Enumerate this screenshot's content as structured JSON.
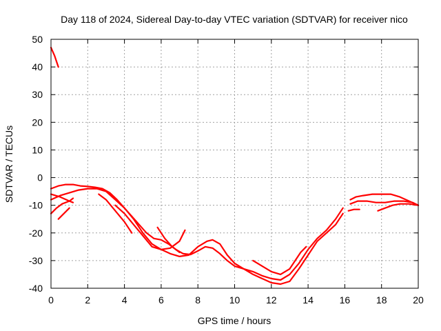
{
  "chart_data": {
    "type": "line",
    "title": "Day 118 of 2024, Sidereal Day-to-day VTEC variation (SDTVAR) for receiver nico",
    "xlabel": "GPS time / hours",
    "ylabel": "SDTVAR / TECUs",
    "xlim": [
      0,
      20
    ],
    "ylim": [
      -40,
      50
    ],
    "xticks": [
      0,
      2,
      4,
      6,
      8,
      10,
      12,
      14,
      16,
      18,
      20
    ],
    "yticks": [
      -40,
      -30,
      -20,
      -10,
      0,
      10,
      20,
      30,
      40,
      50
    ],
    "grid": true,
    "color": "#ff0000",
    "series": [
      {
        "name": "s1",
        "x": [
          0.0,
          0.2,
          0.4
        ],
        "y": [
          47,
          44,
          40
        ]
      },
      {
        "name": "s2",
        "x": [
          0.0,
          0.4,
          0.8,
          1.2,
          1.6,
          2.0,
          2.4,
          2.8,
          3.2,
          3.6,
          4.0,
          4.4,
          4.8,
          5.2,
          5.6,
          6.0,
          6.4,
          6.8,
          7.2,
          7.6,
          8.0,
          8.4,
          8.8,
          9.2,
          9.6,
          10.0,
          10.5,
          11.0,
          11.5,
          12.0,
          12.5,
          13.0,
          13.5,
          14.0,
          14.5,
          15.0,
          15.5,
          15.9
        ],
        "y": [
          -4,
          -3,
          -2.5,
          -2.5,
          -3,
          -3.2,
          -3.5,
          -4,
          -5.5,
          -8,
          -11,
          -14,
          -17,
          -20,
          -22,
          -22.5,
          -24,
          -26,
          -27.5,
          -27.8,
          -26.5,
          -25,
          -25.5,
          -27.5,
          -30,
          -32,
          -33,
          -34,
          -35.5,
          -36.5,
          -37,
          -35,
          -31,
          -26,
          -22,
          -19,
          -15,
          -11
        ]
      },
      {
        "name": "s3",
        "x": [
          0.0,
          0.5,
          1.0,
          1.5,
          2.0,
          2.5,
          3.0,
          3.5,
          4.0,
          4.5,
          5.0,
          5.5,
          6.0,
          6.5,
          7.0,
          7.5,
          8.0,
          8.5,
          8.8,
          9.2,
          9.6,
          10.0,
          10.5,
          11.0,
          11.5,
          12.0,
          12.5,
          13.0,
          13.5,
          14.0,
          14.5,
          15.0,
          15.5,
          15.9
        ],
        "y": [
          -8,
          -6.5,
          -5.5,
          -4.5,
          -4,
          -4,
          -5,
          -8,
          -11,
          -15,
          -20,
          -24,
          -26,
          -27.5,
          -28.5,
          -28,
          -25,
          -23,
          -22.5,
          -24,
          -28,
          -31,
          -33,
          -35,
          -36.5,
          -38,
          -38.5,
          -37.5,
          -33,
          -28,
          -23,
          -20,
          -17,
          -13
        ]
      },
      {
        "name": "s4",
        "x": [
          0.0,
          0.3,
          0.6,
          1.0,
          1.2
        ],
        "y": [
          -13,
          -11,
          -9.5,
          -8.5,
          -7.5
        ]
      },
      {
        "name": "s5",
        "x": [
          0.4,
          0.7,
          1.0
        ],
        "y": [
          -15,
          -13,
          -11
        ]
      },
      {
        "name": "s6",
        "x": [
          0.0,
          0.5,
          1.0,
          1.2
        ],
        "y": [
          -6,
          -7,
          -8.5,
          -9
        ]
      },
      {
        "name": "s7",
        "x": [
          2.6,
          3.0,
          3.5,
          4.0,
          4.4
        ],
        "y": [
          -6,
          -8,
          -12,
          -16,
          -20
        ]
      },
      {
        "name": "s8",
        "x": [
          3.5,
          4.0,
          4.5,
          5.0,
          5.5,
          6.0,
          6.5,
          7.0,
          7.3
        ],
        "y": [
          -10,
          -13,
          -17,
          -21,
          -25,
          -26,
          -25.5,
          -23,
          -19
        ]
      },
      {
        "name": "s9",
        "x": [
          5.8,
          6.2,
          6.6,
          7.0
        ],
        "y": [
          -18,
          -22,
          -25,
          -27
        ]
      },
      {
        "name": "s10",
        "x": [
          11.0,
          11.5,
          12.0,
          12.5,
          13.0
        ],
        "y": [
          -30,
          -32,
          -34,
          -35,
          -33
        ]
      },
      {
        "name": "s11",
        "x": [
          13.0,
          13.3,
          13.6,
          13.9
        ],
        "y": [
          -33,
          -30,
          -27,
          -25
        ]
      },
      {
        "name": "s12",
        "x": [
          16.2,
          16.5,
          16.8
        ],
        "y": [
          -12,
          -11.5,
          -11.5
        ]
      },
      {
        "name": "s13",
        "x": [
          16.3,
          16.6,
          17.0,
          17.5,
          18.0,
          18.5,
          19.0,
          19.5,
          20.0
        ],
        "y": [
          -8,
          -7,
          -6.5,
          -6,
          -6,
          -6,
          -7,
          -8.5,
          -10
        ]
      },
      {
        "name": "s14",
        "x": [
          16.3,
          16.7,
          17.2,
          17.7,
          18.2,
          18.7,
          19.2,
          19.7,
          20.0
        ],
        "y": [
          -9.5,
          -8.5,
          -8.5,
          -9,
          -9,
          -8.5,
          -8.5,
          -9,
          -10
        ]
      },
      {
        "name": "s15",
        "x": [
          17.8,
          18.2,
          18.6,
          19.0,
          19.5,
          20.0
        ],
        "y": [
          -12,
          -11,
          -10,
          -9.5,
          -9.5,
          -10
        ]
      }
    ]
  }
}
